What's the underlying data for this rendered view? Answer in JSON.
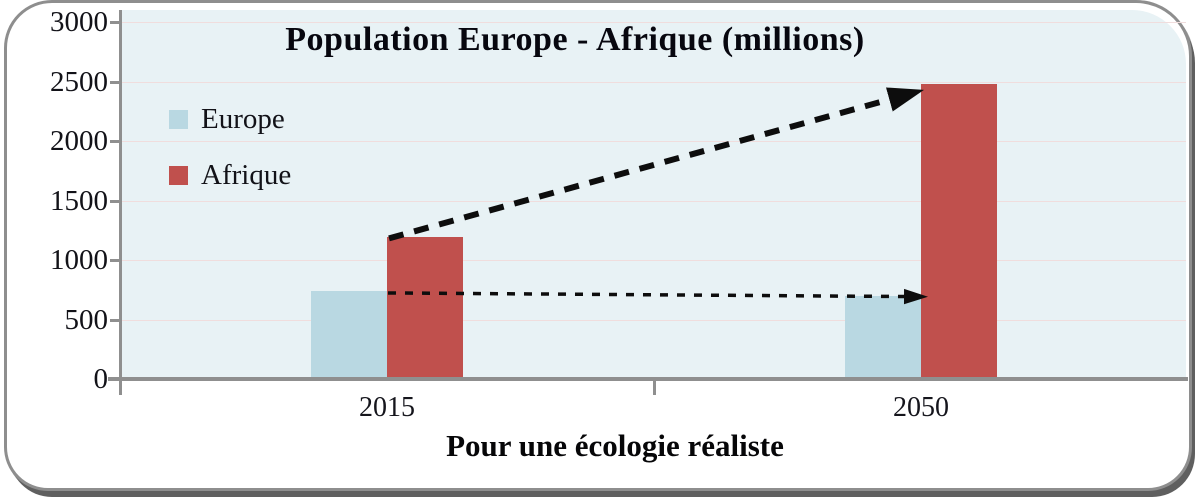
{
  "chart_data": {
    "type": "bar",
    "title": "Population Europe - Afrique (millions)",
    "categories": [
      "2015",
      "2050"
    ],
    "series": [
      {
        "name": "Europe",
        "color": "#b9d8e2",
        "values": [
          740,
          700
        ]
      },
      {
        "name": "Afrique",
        "color": "#c0504d",
        "values": [
          1190,
          2480
        ]
      }
    ],
    "ylim": [
      0,
      3000
    ],
    "yticks": [
      0,
      500,
      1000,
      1500,
      2000,
      2500,
      3000
    ],
    "xlabel": "Pour une écologie réaliste",
    "legend_position": "upper-left-inside",
    "grid": "faint horizontal gridlines at each y tick",
    "annotations": [
      {
        "type": "arrow",
        "style": "bold-dashed",
        "series": "Afrique",
        "from": {
          "category": "2015",
          "value": 1190
        },
        "to": {
          "category": "2050",
          "value": 2480
        }
      },
      {
        "type": "arrow",
        "style": "thin-dotted",
        "series": "Europe",
        "from": {
          "category": "2015",
          "value": 740
        },
        "to": {
          "category": "2050",
          "value": 700
        }
      }
    ]
  },
  "colors": {
    "plot_bg": "#e8f2f5",
    "gridline": "#f0dddd",
    "axis_gray": "#8f8f8f",
    "frame_gray": "#8e8e8e",
    "shadow_gray": "#5f5f5f",
    "text": "#121218",
    "arrow": "#0d0d0d",
    "europe": "#b9d8e2",
    "afrique": "#c0504d"
  }
}
